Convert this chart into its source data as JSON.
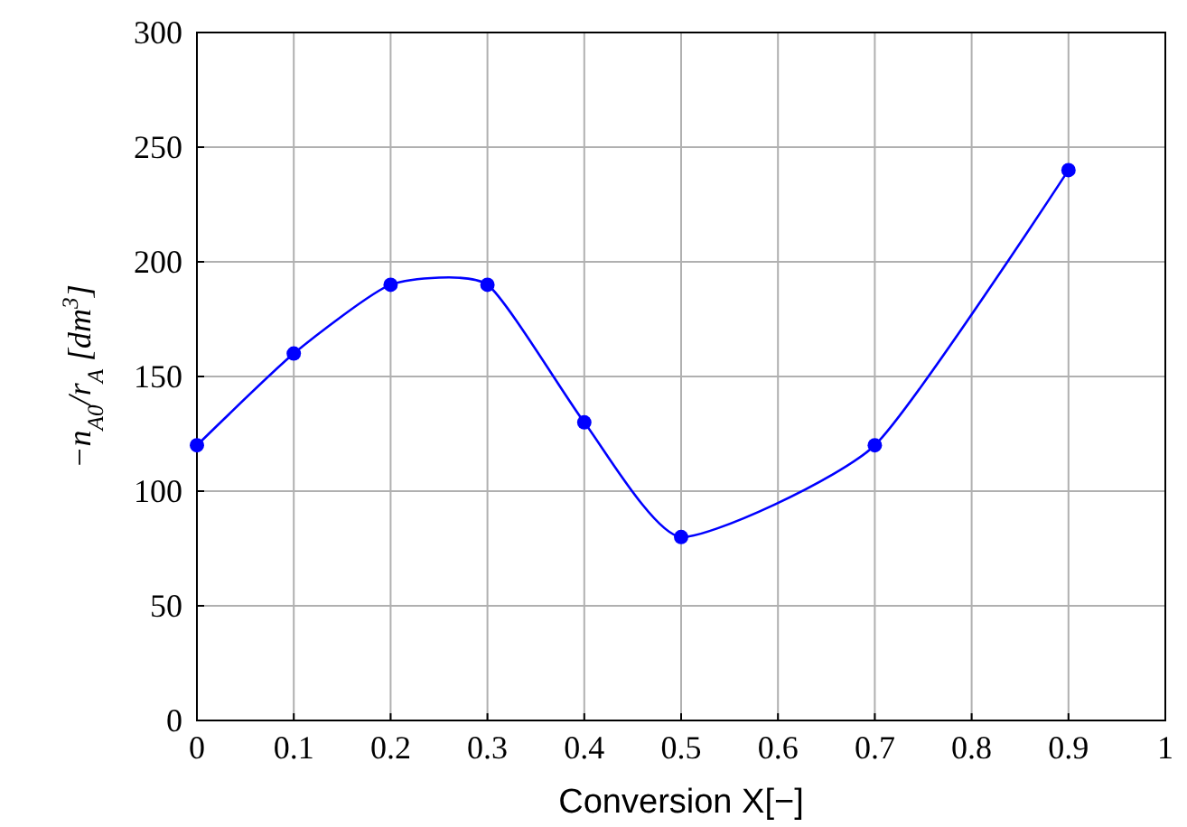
{
  "chart_data": {
    "type": "line",
    "xlabel": "Conversion X[−]",
    "ylabel": "−n$_{A0}$/r$_{A}$ [dm$^{3}$]",
    "x": [
      0,
      0.1,
      0.2,
      0.3,
      0.4,
      0.5,
      0.7,
      0.9
    ],
    "series": [
      {
        "color": "#0000ff",
        "values": [
          120,
          160,
          190,
          190,
          130,
          80,
          120,
          240
        ]
      }
    ],
    "xlim": [
      0,
      1
    ],
    "xticks": [
      0,
      0.1,
      0.2,
      0.3,
      0.4,
      0.5,
      0.6,
      0.7,
      0.8,
      0.9,
      1
    ],
    "ylim": [
      0,
      300
    ],
    "yticks": [
      0,
      50,
      100,
      150,
      200,
      250,
      300
    ],
    "grid": true,
    "marker": "circle",
    "line_style": "solid"
  }
}
